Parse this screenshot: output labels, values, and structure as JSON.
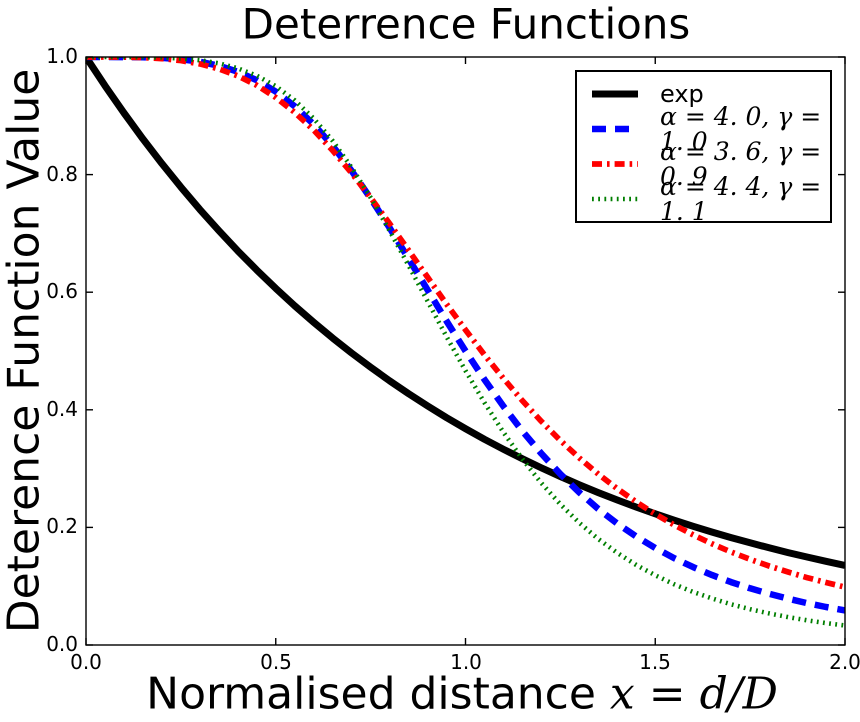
{
  "title": "Deterrence Functions",
  "x_axis": {
    "label_text": "Normalised distance ",
    "label_math": "x = d/D",
    "ticks": [
      "0.0",
      "0.5",
      "1.0",
      "1.5",
      "2.0"
    ]
  },
  "y_axis": {
    "label": "Deterence Function Value",
    "ticks": [
      "0.0",
      "0.2",
      "0.4",
      "0.6",
      "0.8",
      "1.0"
    ]
  },
  "chart_data": {
    "type": "line",
    "title": "Deterrence Functions",
    "xlabel": "Normalised distance x = d/D",
    "ylabel": "Deterence Function Value",
    "xlim": [
      0,
      2
    ],
    "ylim": [
      0,
      1
    ],
    "grid": false,
    "legend_position": "upper right",
    "x": [
      0,
      0.05,
      0.1,
      0.15,
      0.2,
      0.25,
      0.3,
      0.35,
      0.4,
      0.45,
      0.5,
      0.55,
      0.6,
      0.65,
      0.7,
      0.75,
      0.8,
      0.85,
      0.9,
      0.95,
      1.0,
      1.05,
      1.1,
      1.15,
      1.2,
      1.25,
      1.3,
      1.35,
      1.4,
      1.45,
      1.5,
      1.55,
      1.6,
      1.65,
      1.7,
      1.75,
      1.8,
      1.85,
      1.9,
      1.95,
      2.0
    ],
    "series": [
      {
        "name": "exp",
        "legend_label": "exp",
        "formula": "exp(-x)",
        "color": "#000000",
        "style": "solid",
        "linewidth": 7,
        "values": [
          1.0,
          0.9512,
          0.9048,
          0.8607,
          0.8187,
          0.7788,
          0.7408,
          0.7047,
          0.6703,
          0.6376,
          0.6065,
          0.5769,
          0.5488,
          0.522,
          0.4966,
          0.4724,
          0.4493,
          0.4274,
          0.4066,
          0.3867,
          0.3679,
          0.3499,
          0.3329,
          0.3166,
          0.3012,
          0.2865,
          0.2725,
          0.2592,
          0.2466,
          0.2346,
          0.2231,
          0.2122,
          0.2019,
          0.192,
          0.1827,
          0.1738,
          0.1653,
          0.1572,
          0.1496,
          0.1423,
          0.1353
        ]
      },
      {
        "name": "alpha=4.0, gamma=1.0",
        "legend_label": "α = 4. 0, γ = 1. 0",
        "formula": "(1+x^4.0)^(-1.0)",
        "color": "#0000ff",
        "style": "dashed",
        "linewidth": 6.5,
        "values": [
          1.0,
          1.0,
          0.9999,
          0.9995,
          0.9984,
          0.9961,
          0.992,
          0.9852,
          0.975,
          0.9606,
          0.9412,
          0.9162,
          0.8853,
          0.8486,
          0.8064,
          0.7597,
          0.7095,
          0.657,
          0.6039,
          0.5511,
          0.5,
          0.4514,
          0.4058,
          0.3638,
          0.3255,
          0.2906,
          0.2593,
          0.2313,
          0.2065,
          0.1845,
          0.165,
          0.1477,
          0.1324,
          0.1189,
          0.1069,
          0.0964,
          0.087,
          0.0787,
          0.0713,
          0.0647,
          0.0588
        ]
      },
      {
        "name": "alpha=3.6, gamma=0.9",
        "legend_label": "α = 3. 6, γ = 0. 9",
        "formula": "(1+x^3.6)^(-0.9)",
        "color": "#ff0000",
        "style": "dashdot",
        "linewidth": 5.7,
        "values": [
          1.0,
          1.0,
          0.9998,
          0.999,
          0.9973,
          0.9939,
          0.9883,
          0.9798,
          0.9679,
          0.9518,
          0.9311,
          0.9058,
          0.8756,
          0.841,
          0.8025,
          0.7608,
          0.7167,
          0.6713,
          0.6255,
          0.58,
          0.5359,
          0.4934,
          0.4532,
          0.4154,
          0.3803,
          0.3478,
          0.318,
          0.2907,
          0.2658,
          0.2432,
          0.2227,
          0.2041,
          0.1873,
          0.172,
          0.1582,
          0.1458,
          0.1344,
          0.1241,
          0.1147,
          0.1063,
          0.0985
        ]
      },
      {
        "name": "alpha=4.4, gamma=1.1",
        "legend_label": "α = 4. 4, γ = 1. 1",
        "formula": "(1+x^4.4)^(-1.1)",
        "color": "#007f00",
        "style": "dotted",
        "linewidth": 4.6,
        "values": [
          1.0,
          1.0,
          1.0,
          0.9997,
          0.9991,
          0.9975,
          0.9945,
          0.9893,
          0.9808,
          0.9682,
          0.9504,
          0.9263,
          0.8954,
          0.8573,
          0.812,
          0.761,
          0.7046,
          0.6454,
          0.5847,
          0.5245,
          0.4665,
          0.412,
          0.3616,
          0.3161,
          0.2753,
          0.2393,
          0.2077,
          0.1803,
          0.1566,
          0.1361,
          0.1185,
          0.1032,
          0.0902,
          0.079,
          0.0693,
          0.0609,
          0.0537,
          0.0474,
          0.042,
          0.0372,
          0.0332
        ]
      }
    ]
  }
}
